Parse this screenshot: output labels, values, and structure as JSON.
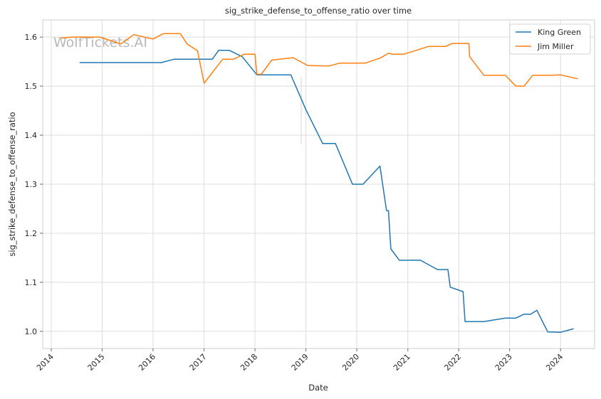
{
  "chart_data": {
    "type": "line",
    "title": "sig_strike_defense_to_offense_ratio over time",
    "xlabel": "Date",
    "ylabel": "sig_strike_defense_to_offense_ratio",
    "watermark": "WolfTickets.AI",
    "xlim": [
      "2013-11-01",
      "2024-09-01"
    ],
    "ylim": [
      0.965,
      1.635
    ],
    "x_ticks": [
      "2014",
      "2015",
      "2016",
      "2017",
      "2018",
      "2019",
      "2020",
      "2021",
      "2022",
      "2023",
      "2024"
    ],
    "y_ticks": [
      "1.0",
      "1.1",
      "1.2",
      "1.3",
      "1.4",
      "1.5",
      "1.6"
    ],
    "grid": true,
    "legend_position": "top-right",
    "series": [
      {
        "name": "King Green",
        "color": "#1f77b4",
        "points": [
          [
            "2014-07-26",
            1.548
          ],
          [
            "2015-01-01",
            1.548
          ],
          [
            "2016-01-01",
            1.548
          ],
          [
            "2016-03-01",
            1.548
          ],
          [
            "2016-06-01",
            1.555
          ],
          [
            "2017-03-01",
            1.555
          ],
          [
            "2017-04-15",
            1.573
          ],
          [
            "2017-07-01",
            1.573
          ],
          [
            "2017-10-01",
            1.56
          ],
          [
            "2018-01-15",
            1.523
          ],
          [
            "2018-09-15",
            1.523
          ],
          [
            "2019-01-01",
            1.452
          ],
          [
            "2019-05-01",
            1.383
          ],
          [
            "2019-08-01",
            1.383
          ],
          [
            "2019-12-01",
            1.3
          ],
          [
            "2020-02-15",
            1.3
          ],
          [
            "2020-06-15",
            1.337
          ],
          [
            "2020-08-01",
            1.246
          ],
          [
            "2020-08-15",
            1.246
          ],
          [
            "2020-09-01",
            1.168
          ],
          [
            "2020-11-01",
            1.145
          ],
          [
            "2021-04-01",
            1.145
          ],
          [
            "2021-08-01",
            1.126
          ],
          [
            "2021-10-15",
            1.126
          ],
          [
            "2021-11-01",
            1.09
          ],
          [
            "2022-02-01",
            1.081
          ],
          [
            "2022-02-15",
            1.02
          ],
          [
            "2022-07-01",
            1.02
          ],
          [
            "2022-12-01",
            1.027
          ],
          [
            "2023-02-15",
            1.027
          ],
          [
            "2023-04-15",
            1.035
          ],
          [
            "2023-06-01",
            1.035
          ],
          [
            "2023-07-15",
            1.043
          ],
          [
            "2023-10-01",
            0.999
          ],
          [
            "2024-01-01",
            0.998
          ],
          [
            "2024-04-01",
            1.005
          ]
        ]
      },
      {
        "name": "Jim Miller",
        "color": "#ff7f0e",
        "points": [
          [
            "2014-03-15",
            1.598
          ],
          [
            "2014-06-01",
            1.6
          ],
          [
            "2014-12-15",
            1.6
          ],
          [
            "2015-04-01",
            1.59
          ],
          [
            "2015-05-15",
            1.586
          ],
          [
            "2015-08-15",
            1.605
          ],
          [
            "2016-01-01",
            1.596
          ],
          [
            "2016-03-15",
            1.607
          ],
          [
            "2016-07-15",
            1.607
          ],
          [
            "2016-09-01",
            1.586
          ],
          [
            "2016-11-15",
            1.572
          ],
          [
            "2017-01-01",
            1.506
          ],
          [
            "2017-05-15",
            1.555
          ],
          [
            "2017-08-01",
            1.555
          ],
          [
            "2017-10-15",
            1.565
          ],
          [
            "2018-01-01",
            1.565
          ],
          [
            "2018-01-15",
            1.524
          ],
          [
            "2018-02-15",
            1.524
          ],
          [
            "2018-05-01",
            1.553
          ],
          [
            "2018-10-01",
            1.558
          ],
          [
            "2019-01-15",
            1.542
          ],
          [
            "2019-06-15",
            1.541
          ],
          [
            "2019-09-01",
            1.547
          ],
          [
            "2020-03-01",
            1.547
          ],
          [
            "2020-06-15",
            1.557
          ],
          [
            "2020-08-15",
            1.567
          ],
          [
            "2020-09-15",
            1.565
          ],
          [
            "2020-12-01",
            1.565
          ],
          [
            "2021-06-01",
            1.581
          ],
          [
            "2021-10-01",
            1.581
          ],
          [
            "2021-11-15",
            1.587
          ],
          [
            "2022-03-15",
            1.587
          ],
          [
            "2022-03-20",
            1.56
          ],
          [
            "2022-07-01",
            1.522
          ],
          [
            "2022-12-01",
            1.522
          ],
          [
            "2023-02-15",
            1.5
          ],
          [
            "2023-04-15",
            1.5
          ],
          [
            "2023-06-15",
            1.522
          ],
          [
            "2023-10-15",
            1.522
          ],
          [
            "2024-01-01",
            1.523
          ],
          [
            "2024-05-01",
            1.515
          ]
        ]
      }
    ]
  }
}
